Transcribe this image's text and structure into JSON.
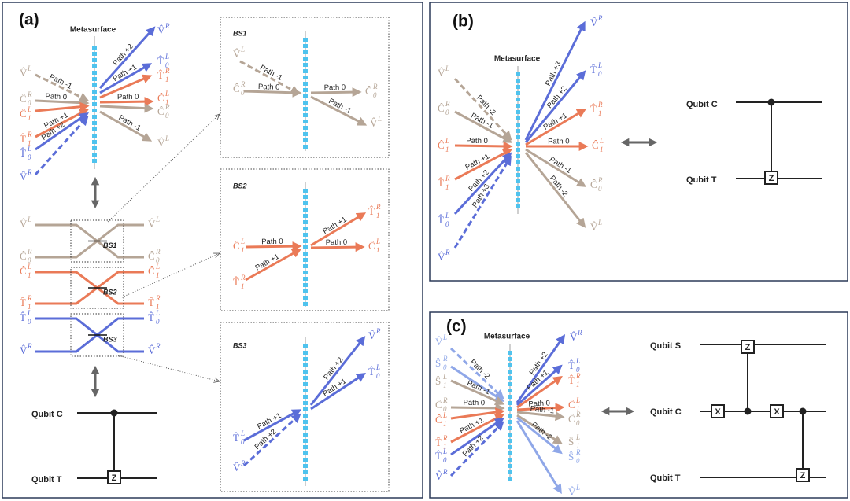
{
  "a": {
    "label": "(a)",
    "metasurface": "Metasurface",
    "inputs": [
      {
        "sym": "V̂",
        "sup": "L"
      },
      {
        "sym": "Ĉ",
        "sub": "0",
        "sup": "R"
      },
      {
        "sym": "Ĉ",
        "sub": "1",
        "sup": "L"
      },
      {
        "sym": "T̂",
        "sub": "1",
        "sup": "R"
      },
      {
        "sym": "T̂",
        "sub": "0",
        "sup": "L"
      },
      {
        "sym": "V̂",
        "sup": "R"
      }
    ],
    "outputs": [
      {
        "sym": "V̂",
        "sup": "R"
      },
      {
        "sym": "T̂",
        "sub": "0",
        "sup": "L"
      },
      {
        "sym": "T̂",
        "sub": "1",
        "sup": "R"
      },
      {
        "sym": "Ĉ",
        "sub": "1",
        "sup": "L"
      },
      {
        "sym": "Ĉ",
        "sub": "0",
        "sup": "R"
      },
      {
        "sym": "V̂",
        "sup": "L"
      }
    ],
    "path_labels": [
      "Path -1",
      "Path 0",
      "Path +1",
      "Path +2",
      "Path +2",
      "Path +1",
      "Path 0",
      "Path -1"
    ],
    "circuit_modes": [
      {
        "sym": "V̂",
        "sup": "L"
      },
      {
        "sym": "Ĉ",
        "sub": "0",
        "sup": "R"
      },
      {
        "sym": "Ĉ",
        "sub": "1",
        "sup": "L"
      },
      {
        "sym": "T̂",
        "sub": "1",
        "sup": "R"
      },
      {
        "sym": "T̂",
        "sub": "0",
        "sup": "L"
      },
      {
        "sym": "V̂",
        "sup": "R"
      }
    ],
    "beamsplitters": [
      {
        "title": "BS1",
        "inputs": [
          {
            "sym": "V̂",
            "sup": "L"
          },
          {
            "sym": "Ĉ",
            "sub": "0",
            "sup": "R"
          }
        ],
        "outputs": [
          {
            "sym": "Ĉ",
            "sub": "0",
            "sup": "R"
          },
          {
            "sym": "V̂",
            "sup": "L"
          }
        ],
        "path_labels": [
          "Path -1",
          "Path 0",
          "Path 0",
          "Path -1"
        ]
      },
      {
        "title": "BS2",
        "inputs": [
          {
            "sym": "Ĉ",
            "sub": "1",
            "sup": "L"
          },
          {
            "sym": "T̂",
            "sub": "1",
            "sup": "R"
          }
        ],
        "outputs": [
          {
            "sym": "T̂",
            "sub": "1",
            "sup": "R"
          },
          {
            "sym": "Ĉ",
            "sub": "1",
            "sup": "L"
          }
        ],
        "path_labels": [
          "Path 0",
          "Path +1",
          "Path +1",
          "Path 0"
        ]
      },
      {
        "title": "BS3",
        "inputs": [
          {
            "sym": "T̂",
            "sub": "0",
            "sup": "L"
          },
          {
            "sym": "V̂",
            "sup": "R"
          }
        ],
        "outputs": [
          {
            "sym": "V̂",
            "sup": "R"
          },
          {
            "sym": "T̂",
            "sub": "0",
            "sup": "L"
          }
        ],
        "path_labels": [
          "Path +1",
          "Path +2",
          "Path +2",
          "Path +1"
        ]
      }
    ],
    "qubits": [
      "Qubit C",
      "Qubit T"
    ],
    "gate": "Z"
  },
  "b": {
    "label": "(b)",
    "metasurface": "Metasurface",
    "inputs": [
      {
        "sym": "V̂",
        "sup": "L"
      },
      {
        "sym": "Ĉ",
        "sub": "0",
        "sup": "R"
      },
      {
        "sym": "Ĉ",
        "sub": "1",
        "sup": "L"
      },
      {
        "sym": "T̂",
        "sub": "1",
        "sup": "R"
      },
      {
        "sym": "T̂",
        "sub": "0",
        "sup": "L"
      },
      {
        "sym": "V̂",
        "sup": "R"
      }
    ],
    "outputs": [
      {
        "sym": "V̂",
        "sup": "R"
      },
      {
        "sym": "T̂",
        "sub": "0",
        "sup": "L"
      },
      {
        "sym": "T̂",
        "sub": "1",
        "sup": "R"
      },
      {
        "sym": "Ĉ",
        "sub": "1",
        "sup": "L"
      },
      {
        "sym": "Ĉ",
        "sub": "0",
        "sup": "R"
      },
      {
        "sym": "V̂",
        "sup": "L"
      }
    ],
    "path_labels": [
      "Path -2",
      "Path -1",
      "Path 0",
      "Path +1",
      "Path +2",
      "Path +3",
      "Path +3",
      "Path +2",
      "Path +1",
      "Path 0",
      "Path -1",
      "Path -2"
    ],
    "qubits": [
      "Qubit C",
      "Qubit T"
    ],
    "gate": "Z"
  },
  "c": {
    "label": "(c)",
    "metasurface": "Metasurface",
    "inputs": [
      {
        "sym": "V̂",
        "sup": "L"
      },
      {
        "sym": "Ŝ",
        "sub": "0",
        "sup": "R"
      },
      {
        "sym": "Ŝ",
        "sub": "1",
        "sup": "L"
      },
      {
        "sym": "Ĉ",
        "sub": "0",
        "sup": "R"
      },
      {
        "sym": "Ĉ",
        "sub": "1",
        "sup": "L"
      },
      {
        "sym": "T̂",
        "sub": "1",
        "sup": "R"
      },
      {
        "sym": "T̂",
        "sub": "0",
        "sup": "L"
      },
      {
        "sym": "V̂",
        "sup": "R"
      }
    ],
    "outputs": [
      {
        "sym": "V̂",
        "sup": "R"
      },
      {
        "sym": "T̂",
        "sub": "0",
        "sup": "L"
      },
      {
        "sym": "T̂",
        "sub": "1",
        "sup": "R"
      },
      {
        "sym": "Ĉ",
        "sub": "1",
        "sup": "L"
      },
      {
        "sym": "Ĉ",
        "sub": "0",
        "sup": "R"
      },
      {
        "sym": "Ŝ",
        "sub": "1",
        "sup": "L"
      },
      {
        "sym": "Ŝ",
        "sub": "0",
        "sup": "R"
      },
      {
        "sym": "V̂",
        "sup": "L"
      }
    ],
    "path_labels": [
      "Path -2",
      "Path -1",
      "Path 0",
      "Path +1",
      "Path +2",
      "Path +2",
      "Path +1",
      "Path 0",
      "Path -1",
      "Path -2"
    ],
    "qubits": [
      "Qubit S",
      "Qubit C",
      "Qubit T"
    ],
    "gates": [
      "X",
      "Z",
      "X",
      "Z"
    ]
  }
}
